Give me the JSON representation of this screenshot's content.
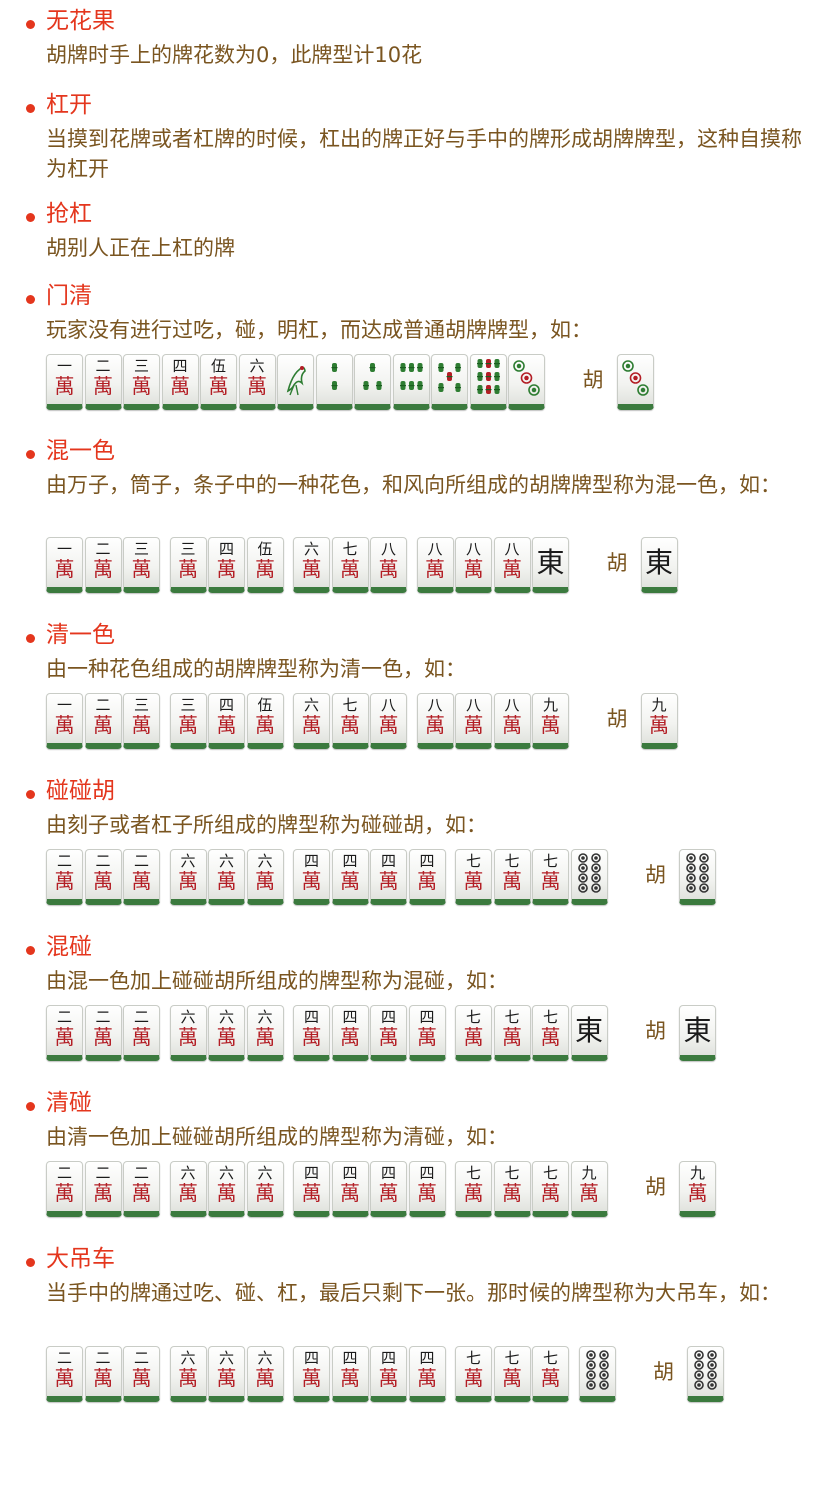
{
  "hu_label": "胡",
  "tile_text": {
    "wan": "萬",
    "east": "東",
    "numerals": [
      "一",
      "二",
      "三",
      "四",
      "伍",
      "六",
      "七",
      "八",
      "九"
    ]
  },
  "tile_icons": {
    "1s": "bird-icon",
    "2s": "bamboo-2-icon",
    "3s": "bamboo-3-icon",
    "4s": "bamboo-4-icon",
    "5s": "bamboo-5-icon",
    "6s": "bamboo-6-icon",
    "9s": "bamboo-9-icon",
    "3p": "circles-3-icon",
    "6p": "circles-6-icon",
    "8p": "circles-8-icon"
  },
  "colors": {
    "accent": "#e4361d",
    "text": "#7a5520",
    "tile_back": "#3b7a3e",
    "character_red": "#b31e25",
    "bamboo_green": "#2e7d32"
  },
  "sections": [
    {
      "title": "无花果",
      "desc": "胡牌时手上的牌花数为0，此牌型计10花"
    },
    {
      "title": "杠开",
      "desc": "当摸到花牌或者杠牌的时候，杠出的牌正好与手中的牌形成胡牌牌型，这种自摸称为杠开"
    },
    {
      "title": "抢杠",
      "desc": "胡别人正在上杠的牌"
    },
    {
      "title": "门清",
      "desc": "玩家没有进行过吃，碰，明杠，而达成普通胡牌牌型，如：",
      "hand": [
        "1m",
        "2m",
        "3m",
        "4m",
        "5m",
        "6m",
        "1s",
        "2s",
        "3s",
        "6s",
        "5s",
        "9s",
        "3p"
      ],
      "win": "3p"
    },
    {
      "title": "混一色",
      "desc": "由万子，筒子，条子中的一种花色，和风向所组成的胡牌牌型称为混一色，如：",
      "hand": [
        "1m",
        "2m",
        "3m",
        "3m",
        "4m",
        "5m",
        "6m",
        "7m",
        "8m",
        "8m",
        "8m",
        "8m",
        "E"
      ],
      "win": "E"
    },
    {
      "title": "清一色",
      "desc": "由一种花色组成的胡牌牌型称为清一色，如：",
      "hand": [
        "1m",
        "2m",
        "3m",
        "3m",
        "4m",
        "5m",
        "6m",
        "7m",
        "8m",
        "8m",
        "8m",
        "8m",
        "9m"
      ],
      "win": "9m"
    },
    {
      "title": "碰碰胡",
      "desc": "由刻子或者杠子所组成的牌型称为碰碰胡，如：",
      "hand": [
        "2m",
        "2m",
        "2m",
        "6m",
        "6m",
        "6m",
        "4m",
        "4m",
        "4m",
        "4m",
        "7m",
        "7m",
        "7m",
        "8p"
      ],
      "win": "8p"
    },
    {
      "title": "混碰",
      "desc": "由混一色加上碰碰胡所组成的牌型称为混碰，如：",
      "hand": [
        "2m",
        "2m",
        "2m",
        "6m",
        "6m",
        "6m",
        "4m",
        "4m",
        "4m",
        "4m",
        "7m",
        "7m",
        "7m",
        "E"
      ],
      "win": "E"
    },
    {
      "title": "清碰",
      "desc": "由清一色加上碰碰胡所组成的牌型称为清碰，如：",
      "hand": [
        "2m",
        "2m",
        "2m",
        "6m",
        "6m",
        "6m",
        "4m",
        "4m",
        "4m",
        "4m",
        "7m",
        "7m",
        "7m",
        "9m"
      ],
      "win": "9m"
    },
    {
      "title": "大吊车",
      "desc": "当手中的牌通过吃、碰、杠，最后只剩下一张。那时候的牌型称为大吊车，如：",
      "hand": [
        "2m",
        "2m",
        "2m",
        "6m",
        "6m",
        "6m",
        "4m",
        "4m",
        "4m",
        "4m",
        "7m",
        "7m",
        "7m",
        "8p"
      ],
      "win": "8p"
    }
  ]
}
